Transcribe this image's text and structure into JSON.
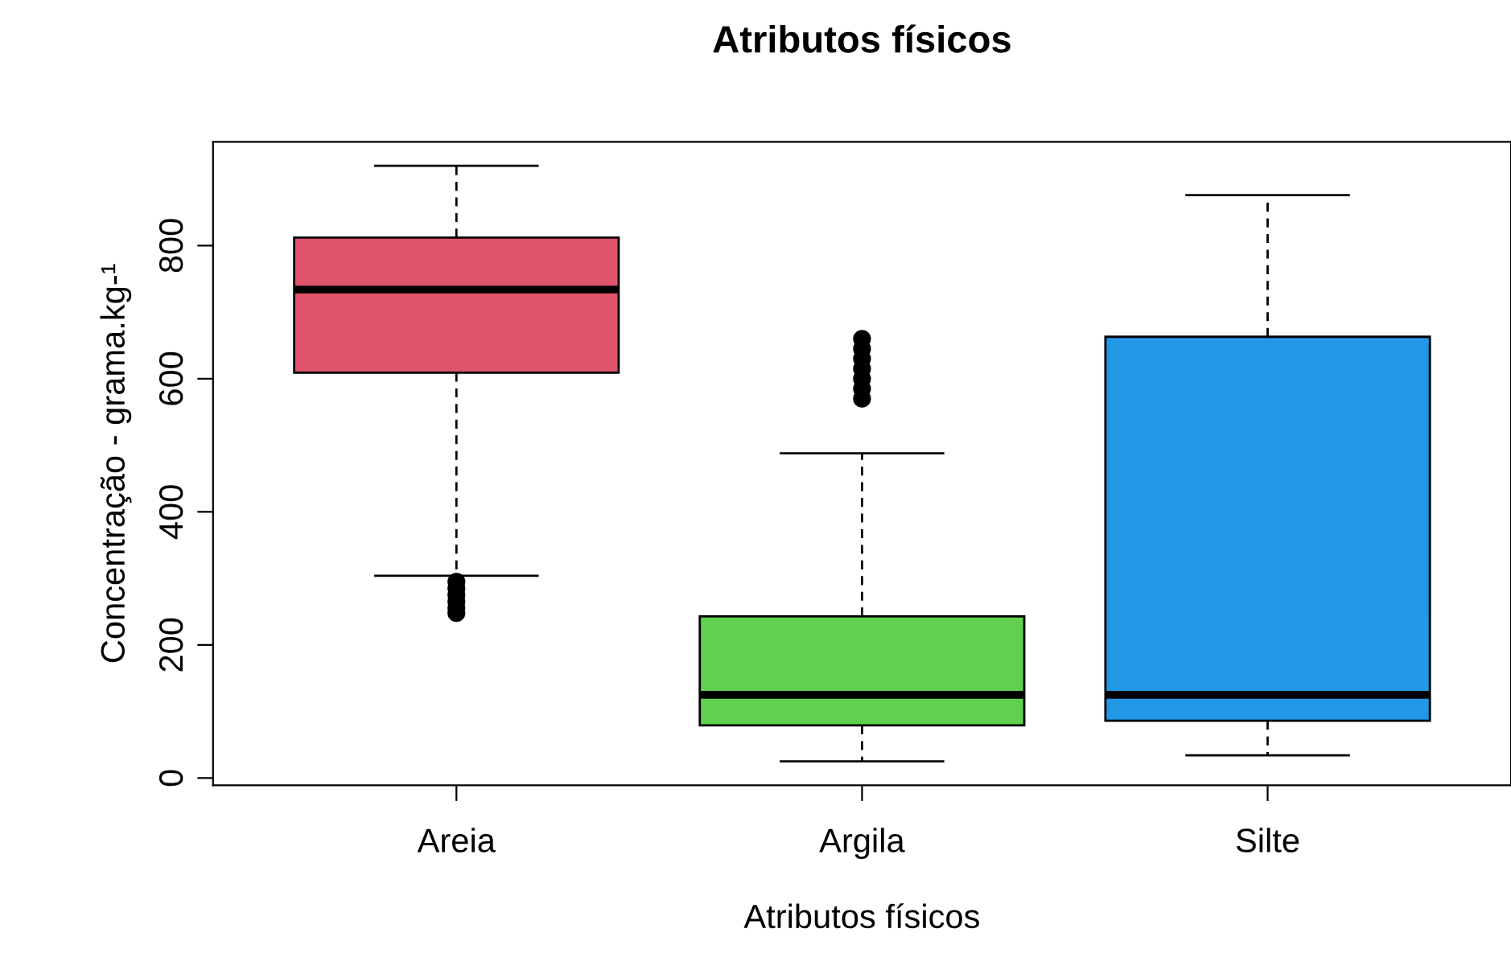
{
  "chart_data": {
    "type": "box",
    "title": "Atributos físicos",
    "xlabel": "Atributos físicos",
    "ylabel": "Concentração - grama.kg-¹",
    "categories": [
      "Areia",
      "Argila",
      "Silte"
    ],
    "colors": [
      "#df536b",
      "#61d04f",
      "#2297e6"
    ],
    "boxes": [
      {
        "low": 304,
        "q1": 609,
        "median": 734,
        "q3": 812,
        "high": 920,
        "outliers": [
          295,
          285,
          275,
          265,
          255,
          248
        ]
      },
      {
        "low": 25,
        "q1": 79,
        "median": 125,
        "q3": 243,
        "high": 488,
        "outliers": [
          660,
          645,
          630,
          615,
          600,
          585,
          570
        ]
      },
      {
        "low": 34,
        "q1": 86,
        "median": 125,
        "q3": 663,
        "high": 876
      }
    ],
    "ylim": [
      -11,
      956
    ],
    "yticks": [
      0,
      200,
      400,
      600,
      800
    ],
    "grid": false,
    "legend": false
  }
}
